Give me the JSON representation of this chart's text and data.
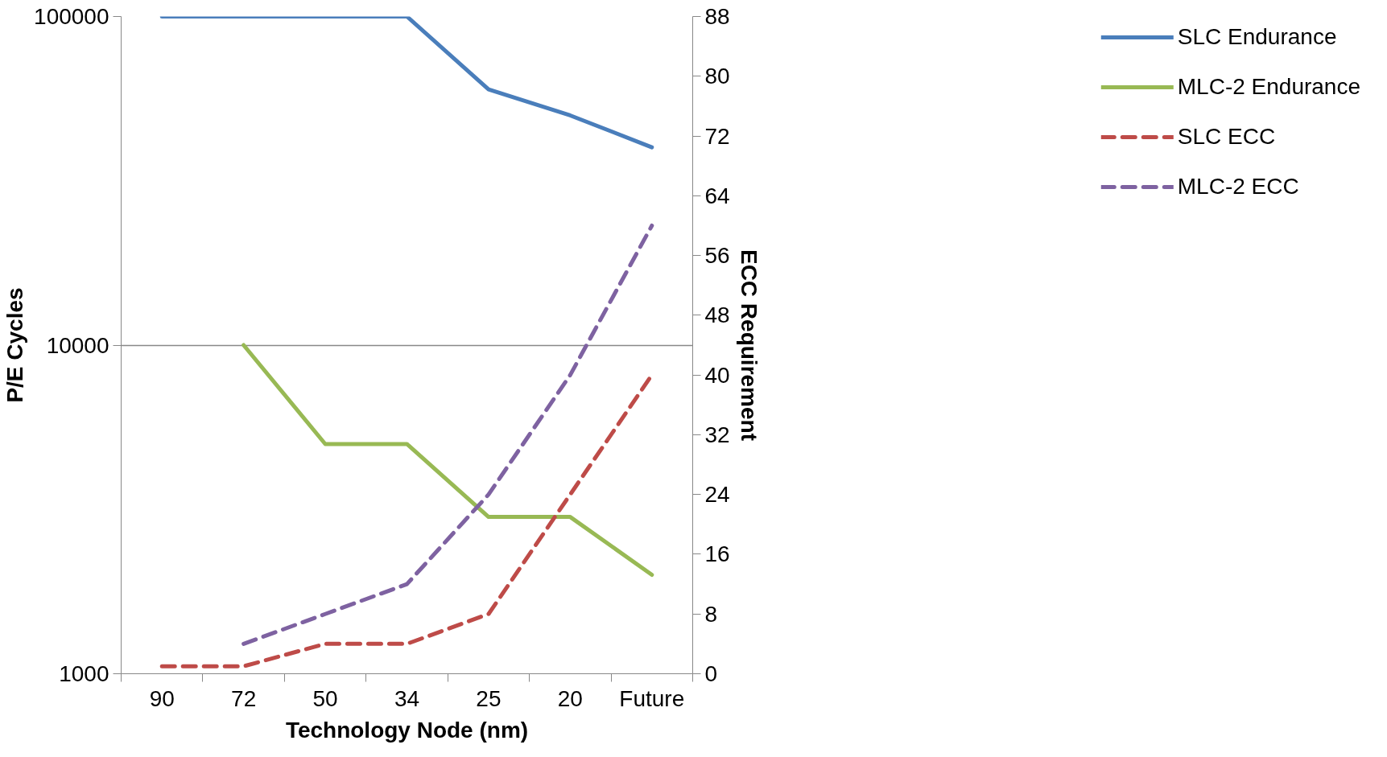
{
  "chart_data": {
    "type": "line",
    "xlabel": "Technology Node (nm)",
    "ylabel": "P/E Cycles",
    "y2label": "ECC Requirement",
    "categories": [
      "90",
      "72",
      "50",
      "34",
      "25",
      "20",
      "Future"
    ],
    "log": "y",
    "ylim": [
      1000,
      100000
    ],
    "yticks": [
      1000,
      10000,
      100000
    ],
    "y2lim": [
      0,
      88
    ],
    "y2ticks": [
      0,
      8,
      16,
      24,
      32,
      40,
      48,
      56,
      64,
      72,
      80,
      88
    ],
    "grid": "y",
    "legend": "right",
    "line_style": "solid",
    "series": [
      {
        "name": "SLC Endurance",
        "color": "#4a7ebb",
        "values": [
          100000,
          100000,
          100000,
          100000,
          60000,
          50000,
          40000
        ]
      },
      {
        "name": "MLC-2 Endurance",
        "color": "#98b954",
        "values": [
          null,
          10000,
          5000,
          5000,
          3000,
          3000,
          2000
        ]
      },
      {
        "name": "SLC ECC",
        "color": "#be4b48",
        "axis": "y2",
        "line_style": "dashed",
        "values": [
          1,
          1,
          4,
          4,
          8,
          24,
          40
        ]
      },
      {
        "name": "MLC-2 ECC",
        "color": "#7e62a1",
        "axis": "y2",
        "line_style": "dashed",
        "values": [
          null,
          4,
          8,
          12,
          24,
          40,
          60
        ]
      }
    ]
  }
}
